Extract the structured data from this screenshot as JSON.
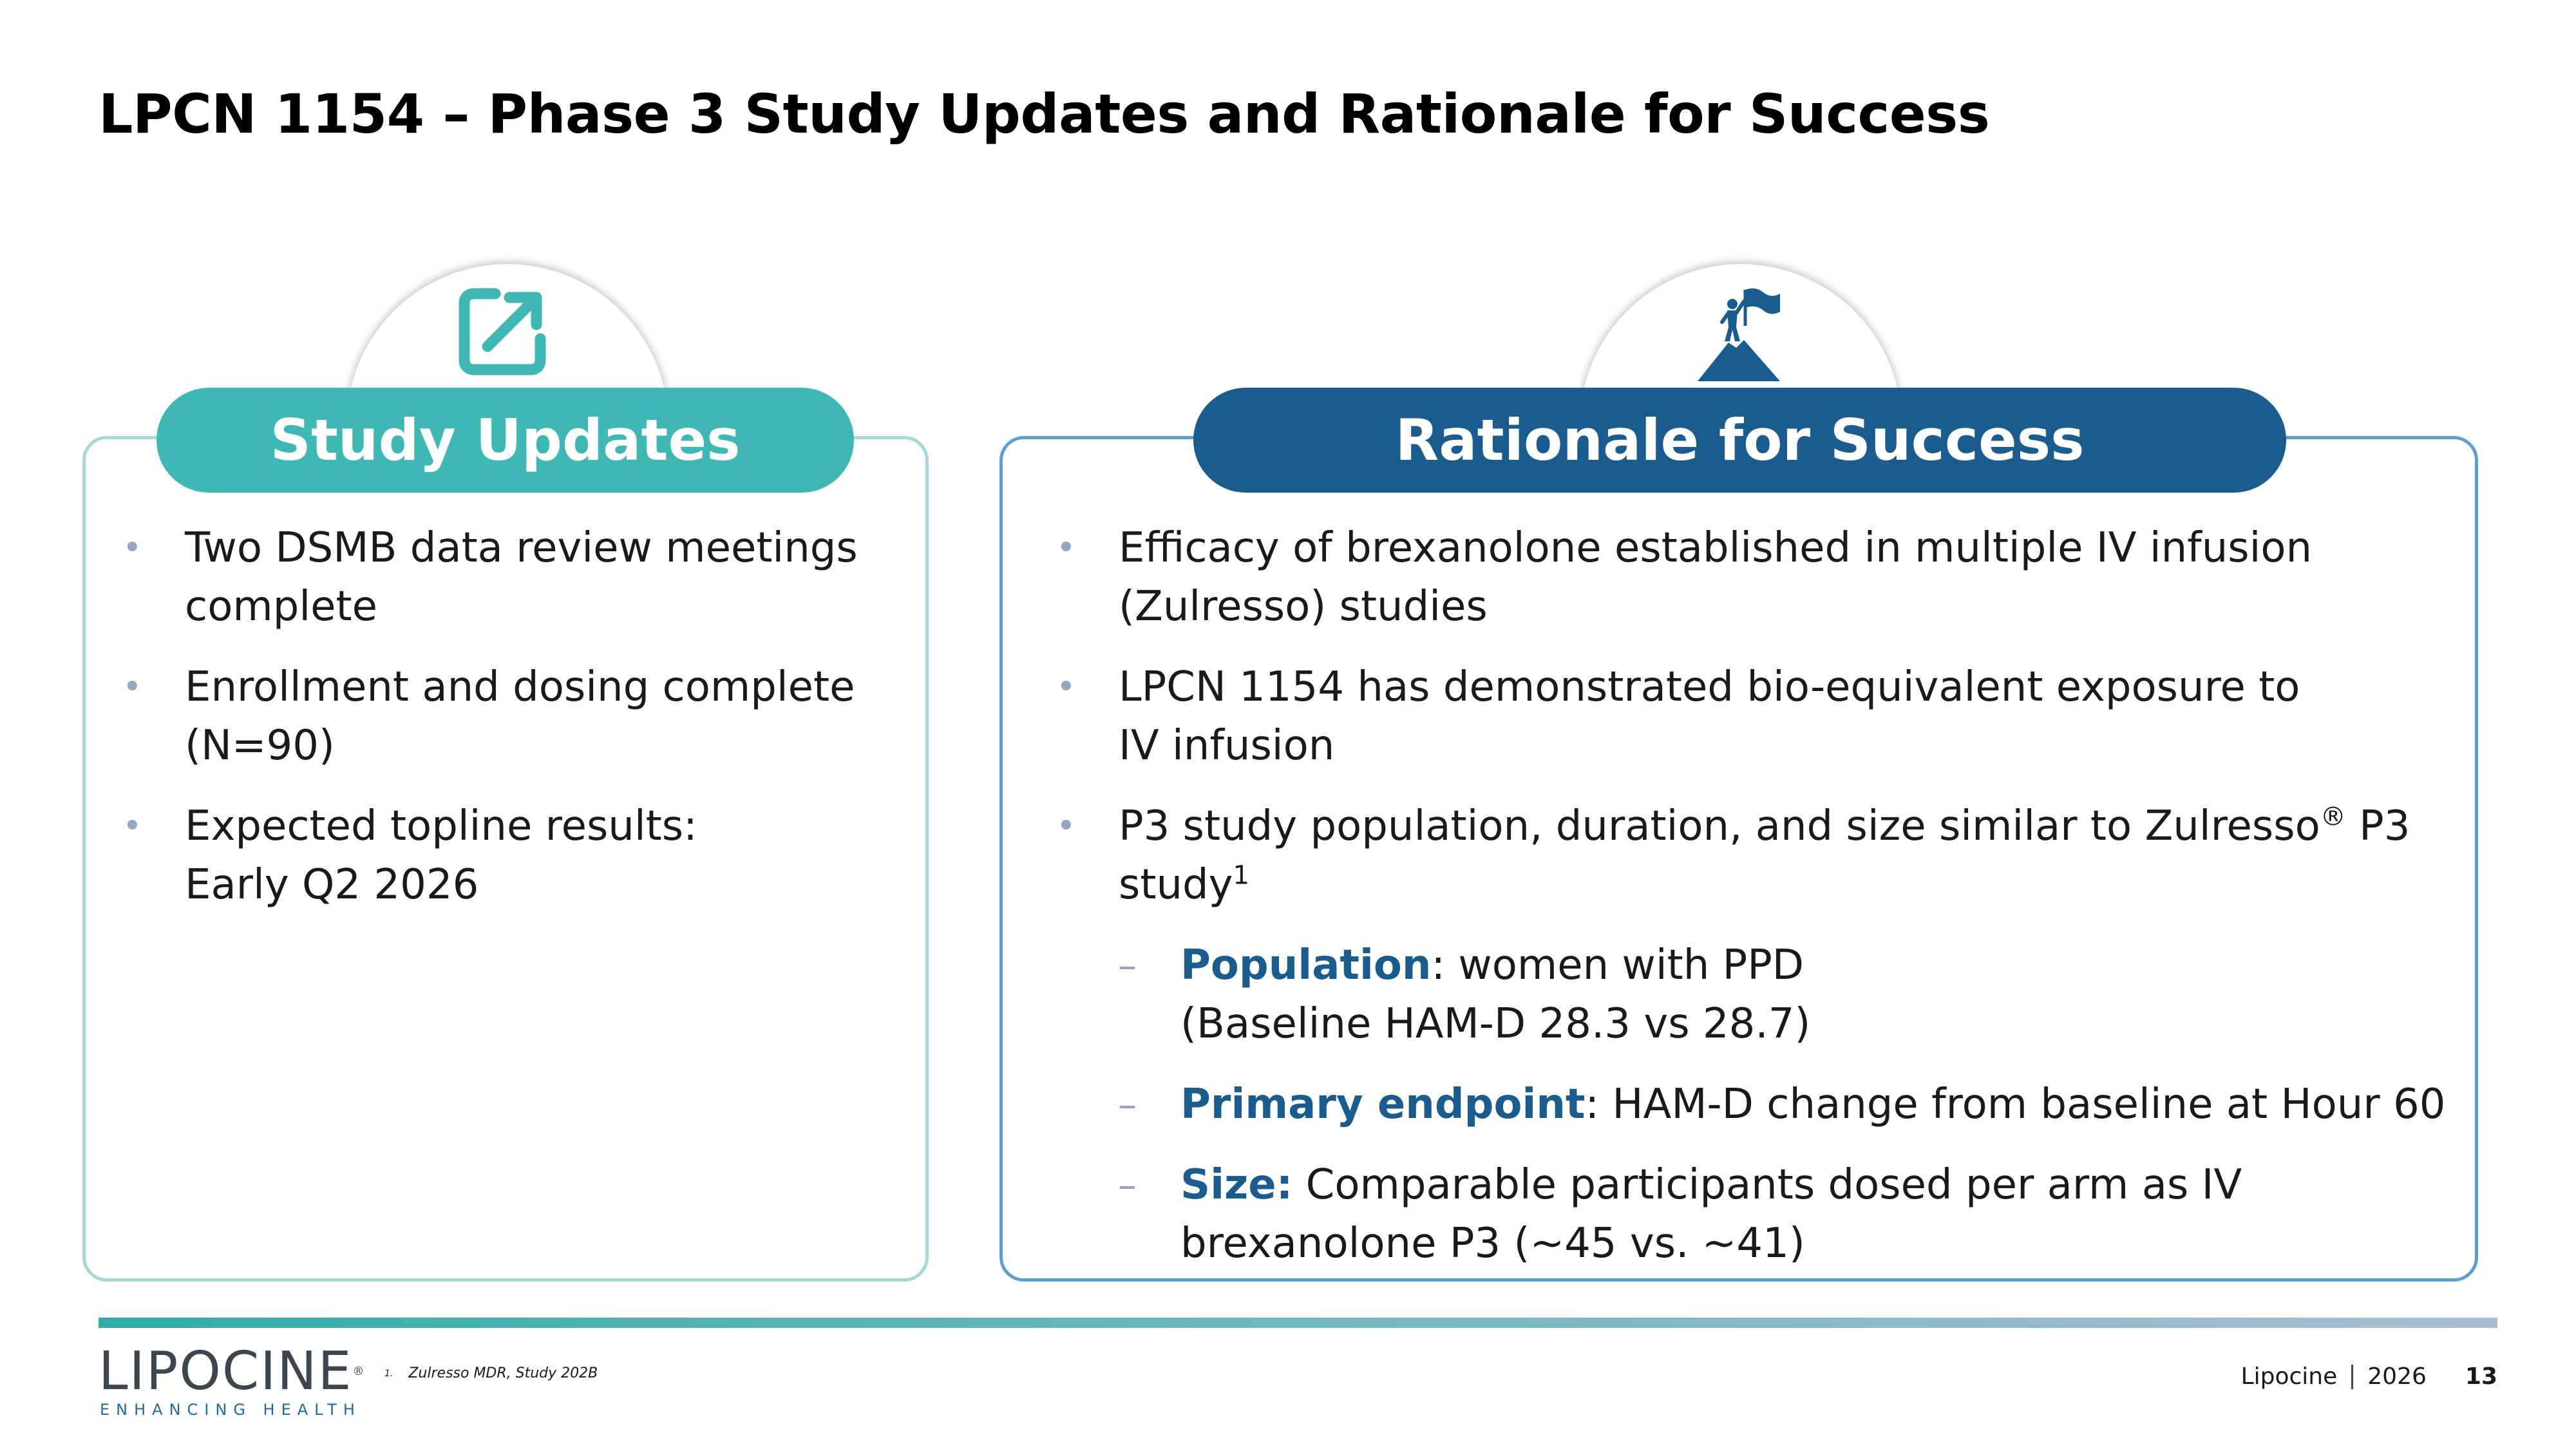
{
  "slide": {
    "title": "LPCN 1154 – Phase 3 Study Updates and Rationale for Success"
  },
  "left_card": {
    "heading": "Study Updates",
    "icon": "external-link-icon",
    "accent_color": "#3fb8b5",
    "bullets": [
      {
        "lines": [
          "Two DSMB data review meetings",
          "complete"
        ]
      },
      {
        "lines": [
          "Enrollment and dosing complete",
          "(N=90)"
        ]
      },
      {
        "lines": [
          "Expected topline results:",
          "Early Q2 2026"
        ]
      }
    ]
  },
  "right_card": {
    "heading": "Rationale for Success",
    "icon": "mountain-flag-icon",
    "accent_color": "#1b5c8e",
    "bullets": [
      {
        "lines": [
          "Efficacy of brexanolone established in multiple IV infusion",
          "(Zulresso) studies"
        ]
      },
      {
        "lines": [
          "LPCN 1154 has demonstrated bio-equivalent exposure to",
          "IV infusion"
        ]
      },
      {
        "line1": "P3 study population, duration, and size similar to Zulresso",
        "reg_mark": "®",
        "line1_end": " P3",
        "line2": "study",
        "superscript": "1"
      }
    ],
    "sub_bullets": [
      {
        "label": "Population",
        "text": ": women with PPD",
        "line2": "(Baseline HAM-D 28.3 vs 28.7)"
      },
      {
        "label": "Primary endpoint",
        "text": ": HAM-D change from baseline at Hour 60"
      },
      {
        "label": "Size:",
        "text": " Comparable participants dosed per arm as IV",
        "line2": "brexanolone P3 (~45 vs. ~41)"
      }
    ]
  },
  "markers": {
    "bullet": "•",
    "dash": "–"
  },
  "footer": {
    "logo_word": "LIPOCINE",
    "logo_tm": "®",
    "logo_tagline": "ENHANCING HEALTH",
    "footnote_number": "1.",
    "footnote_text": "Zulresso MDR, Study 202B",
    "company": "Lipocine",
    "year": "2026",
    "page_number": "13"
  }
}
